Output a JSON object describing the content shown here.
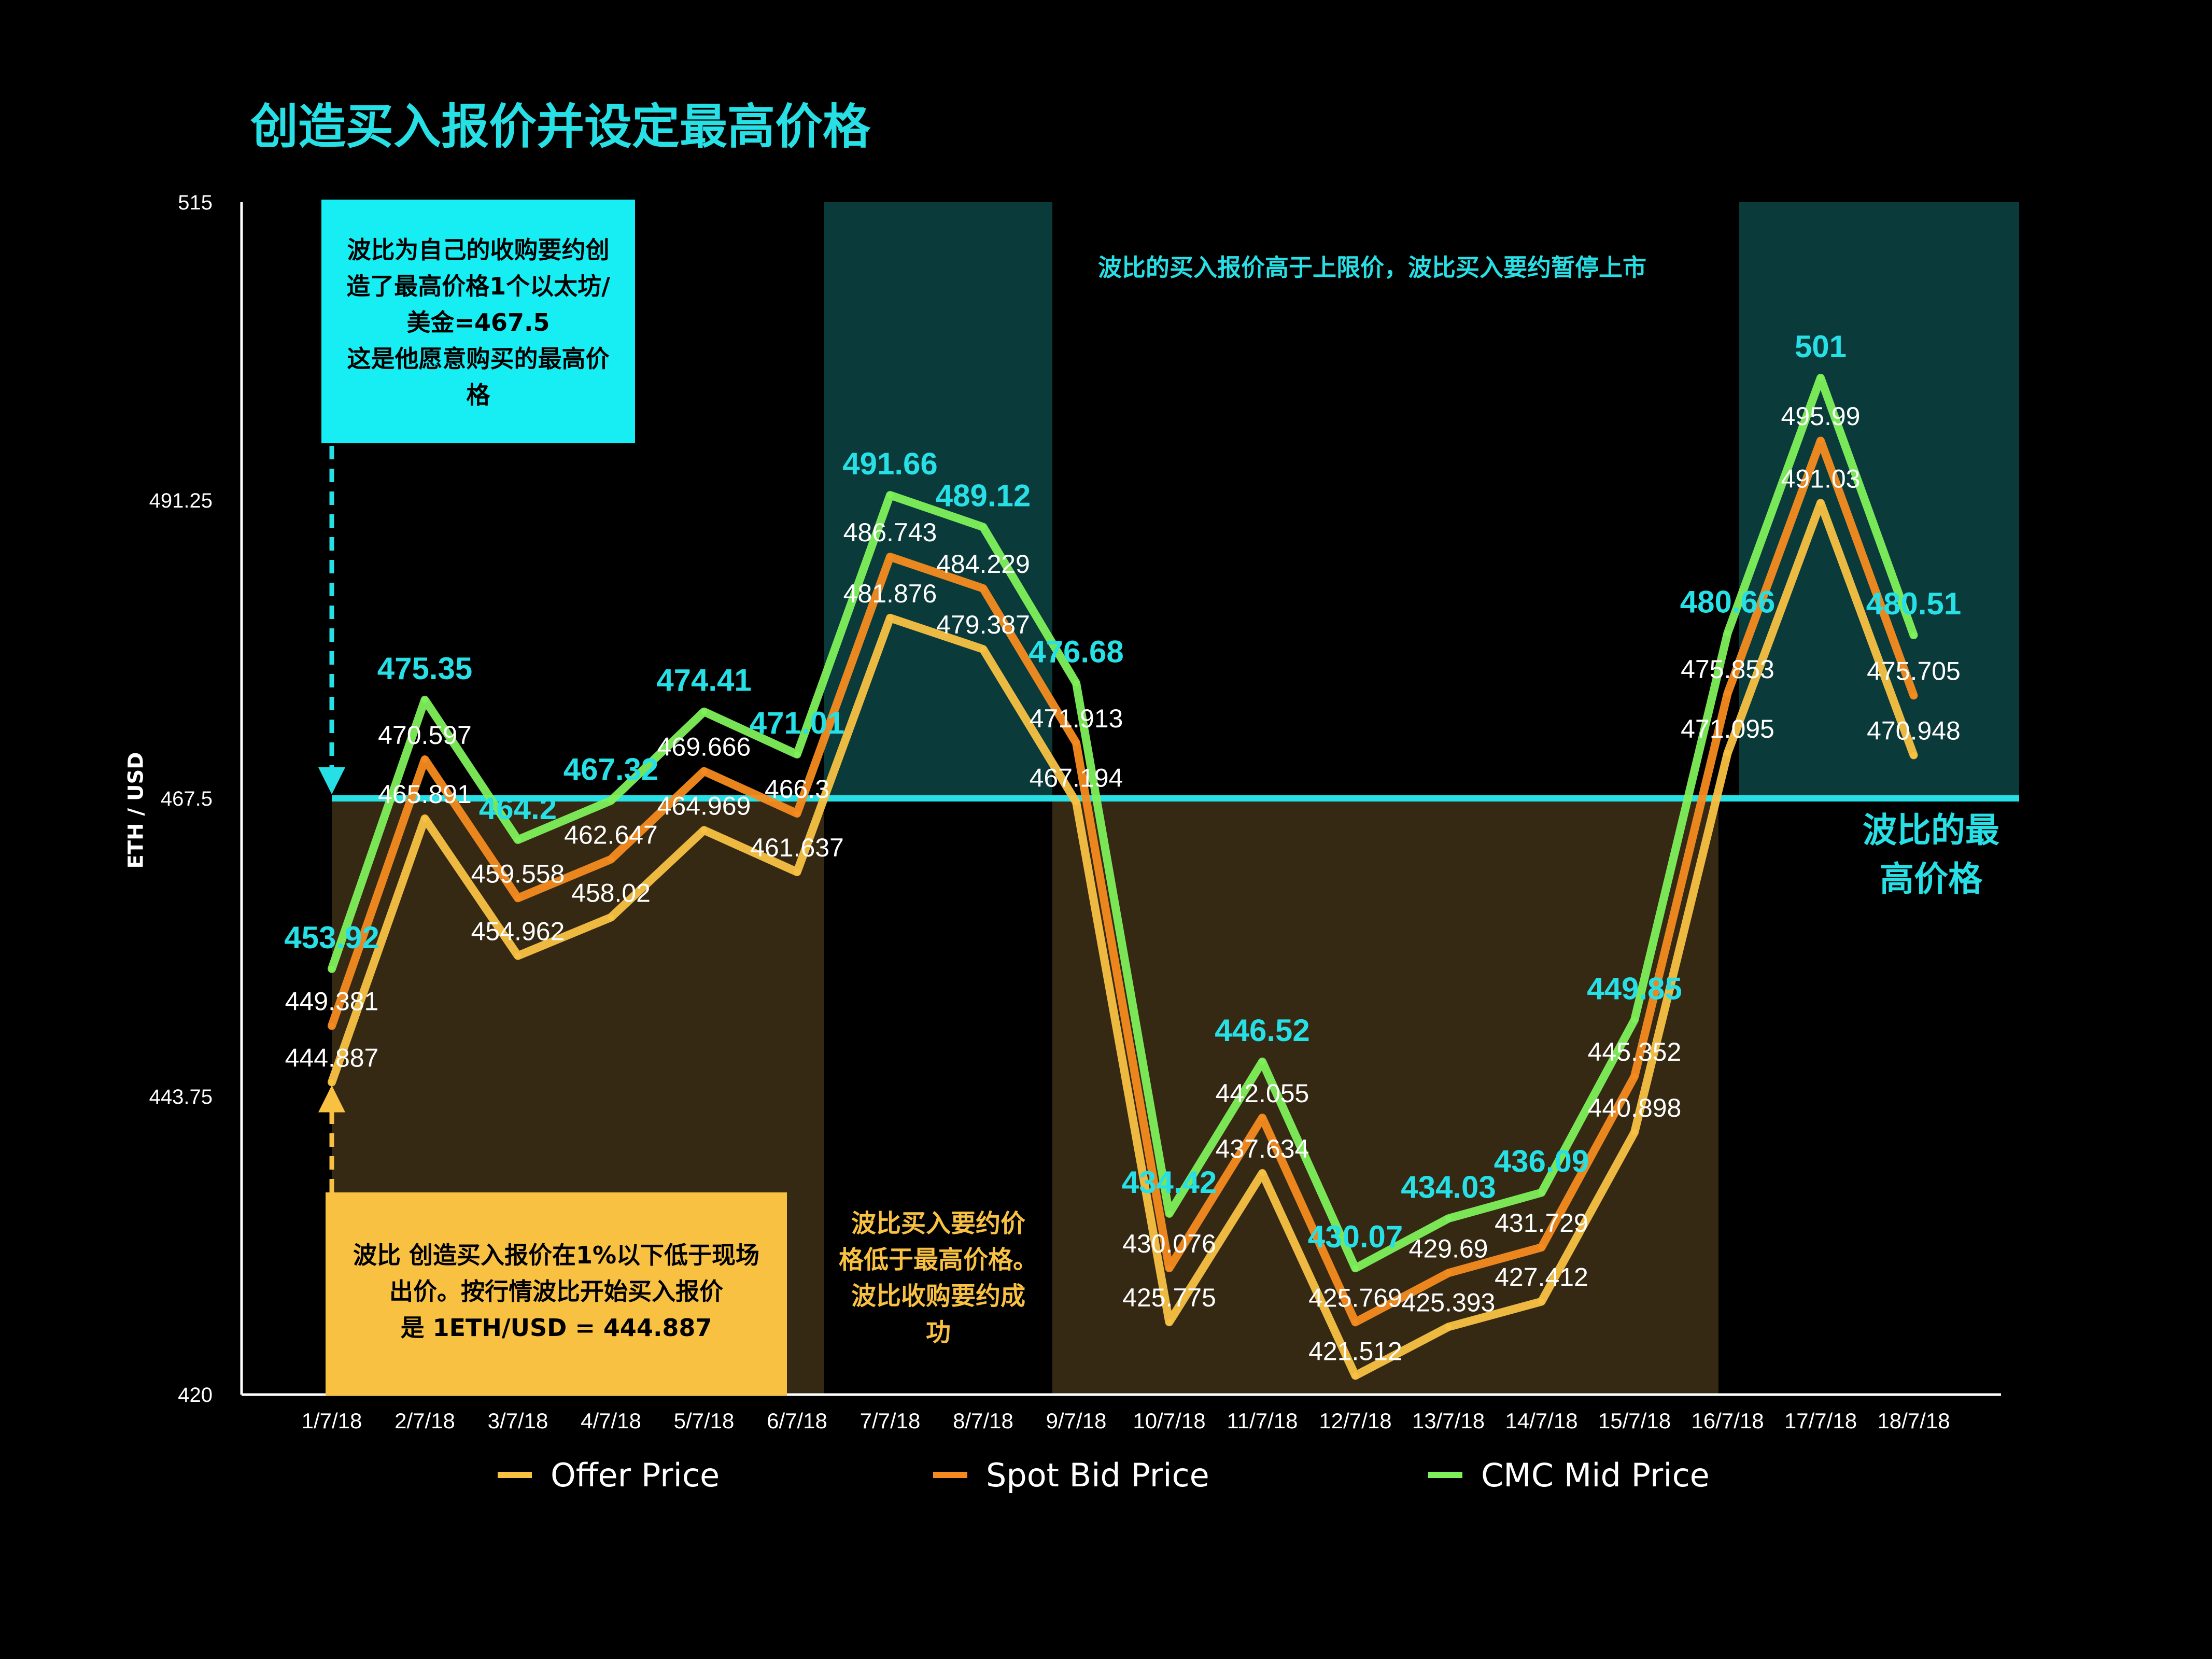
{
  "chart_data": {
    "type": "line",
    "title": "创造买入报价并设定最高价格",
    "ylabel": "ETH / USD",
    "xlabel": "",
    "ylim": [
      420,
      515
    ],
    "yticks": [
      "515",
      "491.25",
      "467.5",
      "443.75",
      "420"
    ],
    "categories": [
      "1/7/18",
      "2/7/18",
      "3/7/18",
      "4/7/18",
      "5/7/18",
      "6/7/18",
      "7/7/18",
      "8/7/18",
      "9/7/18",
      "10/7/18",
      "11/7/18",
      "12/7/18",
      "13/7/18",
      "14/7/18",
      "15/7/18",
      "16/7/18",
      "17/7/18",
      "18/7/18"
    ],
    "max_price": 467.5,
    "series": [
      {
        "name": "Offer Price",
        "color": "#f8c142",
        "values": [
          444.887,
          465.891,
          454.962,
          458.02,
          464.969,
          461.637,
          481.876,
          479.387,
          467.194,
          425.775,
          437.634,
          421.512,
          425.393,
          427.412,
          440.898,
          471.095,
          491.03,
          470.948
        ],
        "labels": [
          "444.887",
          "465.891",
          "454.962",
          "458.02",
          "464.969",
          "461.637",
          "481.876",
          "479.387",
          "467.194",
          "425.775",
          "437.634",
          "421.512",
          "425.393",
          "427.412",
          "440.898",
          "471.095",
          "491.03",
          "470.948"
        ]
      },
      {
        "name": "Spot Bid Price",
        "color": "#f58b1f",
        "values": [
          449.381,
          470.597,
          459.558,
          462.647,
          469.666,
          466.3,
          486.743,
          484.229,
          471.913,
          430.076,
          442.055,
          425.769,
          429.69,
          431.729,
          445.352,
          475.853,
          495.99,
          475.705
        ],
        "labels": [
          "449.381",
          "470.597",
          "459.558",
          "462.647",
          "469.666",
          "466.3",
          "486.743",
          "484.229",
          "471.913",
          "430.076",
          "442.055",
          "425.769",
          "429.69",
          "431.729",
          "445.352",
          "475.853",
          "495.99",
          "475.705"
        ]
      },
      {
        "name": "CMC Mid Price",
        "color": "#7ef05a",
        "values": [
          453.92,
          475.35,
          464.2,
          467.32,
          474.41,
          471.01,
          491.66,
          489.12,
          476.68,
          434.42,
          446.52,
          430.07,
          434.03,
          436.09,
          449.85,
          480.66,
          501,
          480.51
        ],
        "labels": [
          "453.92",
          "475.35",
          "464.2",
          "467.32",
          "474.41",
          "471.01",
          "491.66",
          "489.12",
          "476.68",
          "434.42",
          "446.52",
          "430.07",
          "434.03",
          "436.09",
          "449.85",
          "480.66",
          "501",
          "480.51"
        ]
      }
    ],
    "legend_position": "bottom",
    "grid": false
  },
  "annotations": {
    "top_box": [
      "波比为自己的收购要约创",
      "造了最高价格1个以太坊/",
      "美金=467.5",
      "这是他愿意购买的最高价",
      "格"
    ],
    "bottom_box": [
      "波比 创造买入报价在1%以下低于现场",
      "出价。按行情波比开始买入报价",
      "是  1ETH/USD = 444.887"
    ],
    "middle_note": [
      "波比买入要约价",
      "格低于最高价格。",
      "波比收购要约成",
      "功"
    ],
    "banner": "波比的买入报价高于上限价，波比买入要约暂停上市",
    "max_label": [
      "波比的最",
      "高价格"
    ]
  },
  "colors": {
    "background": "#000000",
    "accent_cyan": "#27e0e6",
    "zone_cyan": "#0a3a3a",
    "zone_brown": "#352914"
  }
}
